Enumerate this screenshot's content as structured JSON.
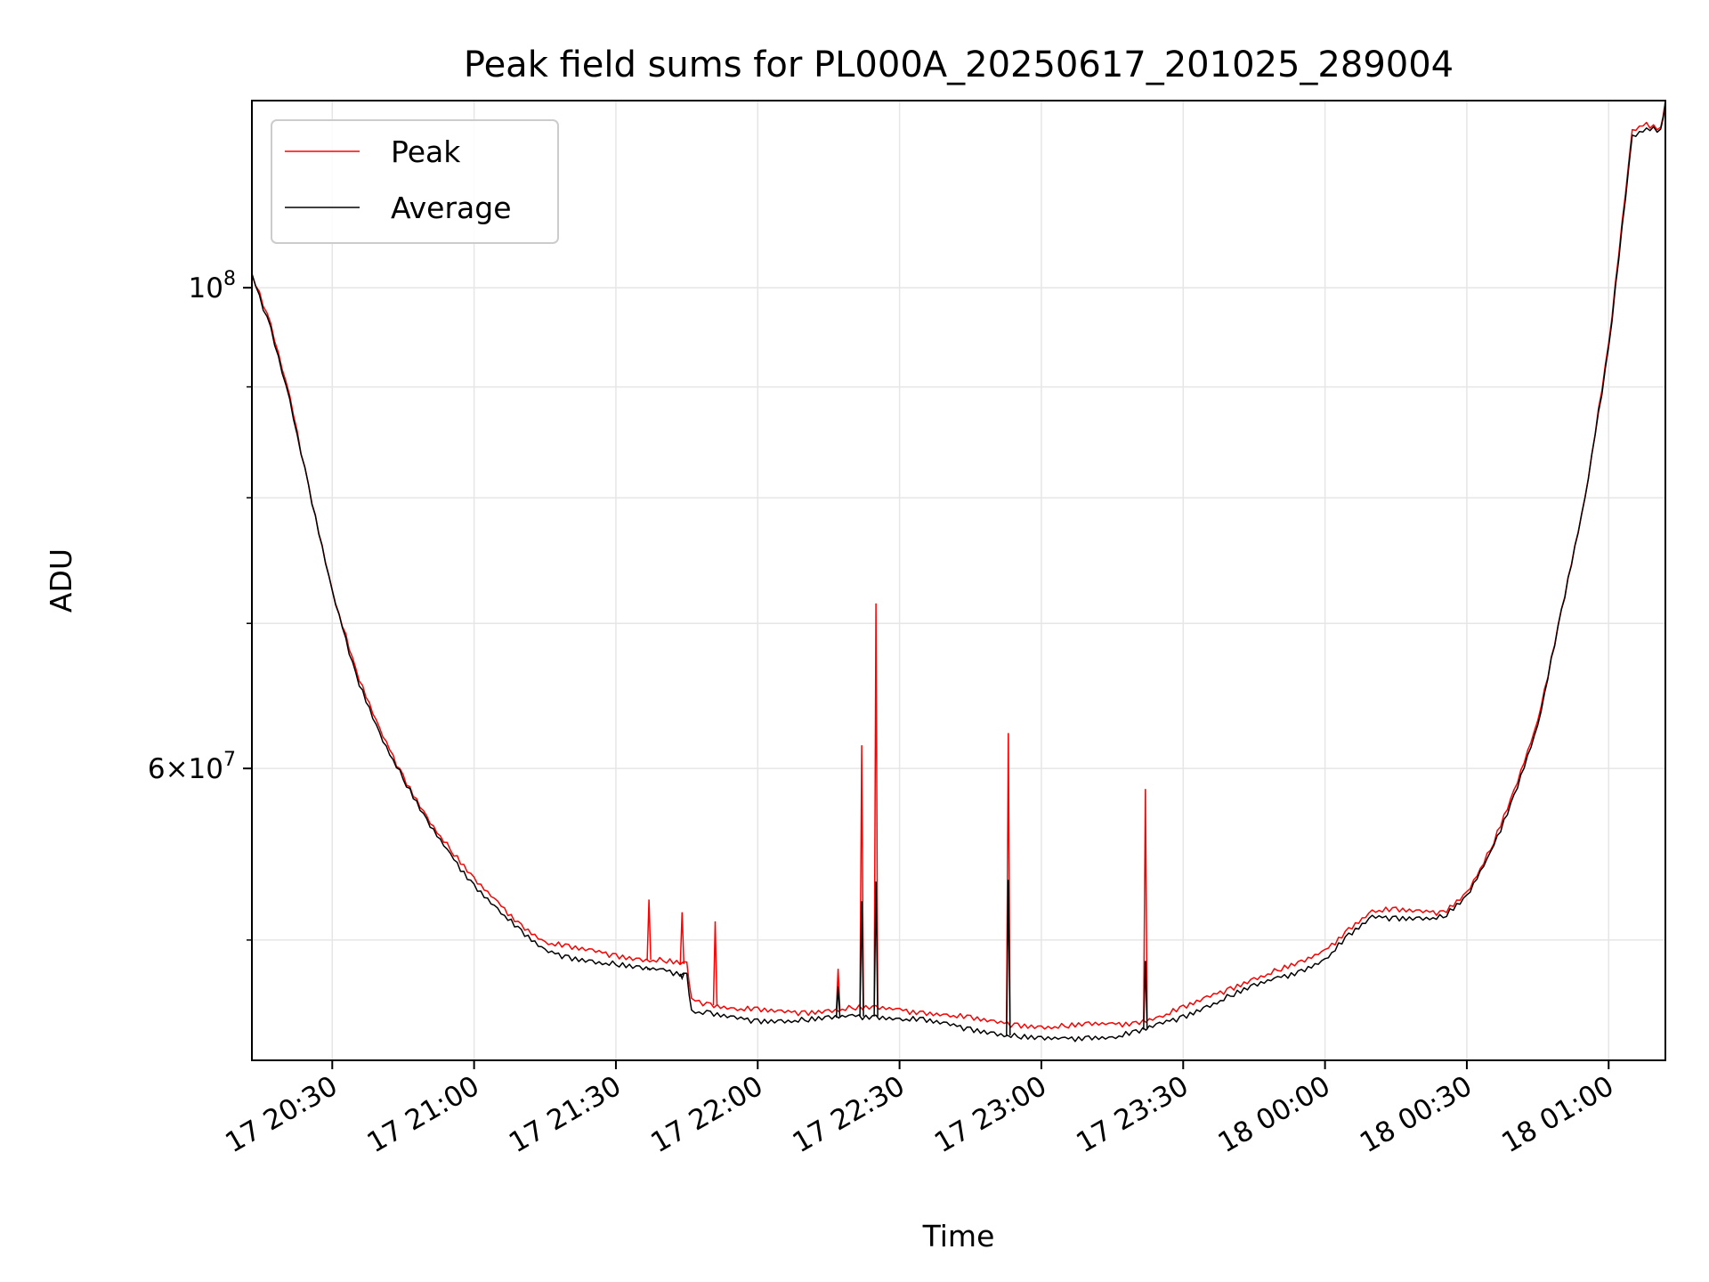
{
  "chart_data": {
    "type": "line",
    "title": "Peak field sums for PL000A_20250617_201025_289004",
    "xlabel": "Time",
    "ylabel": "ADU",
    "yscale": "log",
    "grid": true,
    "legend_position": "top-left",
    "x_start": "17 20:13",
    "x_end": "18 01:12",
    "ylim": [
      44000000,
      122000000
    ],
    "x_ticks": [
      "17 20:30",
      "17 21:00",
      "17 21:30",
      "17 22:00",
      "17 22:30",
      "17 23:00",
      "17 23:30",
      "18 00:00",
      "18 00:30",
      "18 01:00"
    ],
    "y_ticks": [
      {
        "value": 100000000,
        "base": "10",
        "exp": "8",
        "mantissa": ""
      },
      {
        "value": 60000000,
        "base": "10",
        "exp": "7",
        "mantissa": "6"
      }
    ],
    "y_minor_ticks": [
      50000000,
      70000000,
      80000000,
      90000000
    ],
    "series": [
      {
        "name": "Peak",
        "color": "#ff0000",
        "points": [
          [
            "17 20:13",
            101500000
          ],
          [
            "17 20:17",
            96000000
          ],
          [
            "17 20:21",
            89000000
          ],
          [
            "17 20:25",
            81000000
          ],
          [
            "17 20:30",
            72500000
          ],
          [
            "17 20:35",
            66500000
          ],
          [
            "17 20:40",
            62500000
          ],
          [
            "17 20:45",
            59500000
          ],
          [
            "17 20:50",
            57000000
          ],
          [
            "17 20:55",
            55000000
          ],
          [
            "17 21:00",
            53300000
          ],
          [
            "17 21:05",
            52000000
          ],
          [
            "17 21:10",
            50800000
          ],
          [
            "17 21:15",
            49900000
          ],
          [
            "17 21:20",
            49600000
          ],
          [
            "17 21:25",
            49400000
          ],
          [
            "17 21:30",
            49200000
          ],
          [
            "17 21:35",
            49000000
          ],
          [
            "17 21:40",
            48900000
          ],
          [
            "17 21:45",
            48700000
          ],
          [
            "17 21:46",
            46900000
          ],
          [
            "17 21:50",
            46700000
          ],
          [
            "17 21:55",
            46500000
          ],
          [
            "17 22:00",
            46400000
          ],
          [
            "17 22:05",
            46300000
          ],
          [
            "17 22:10",
            46300000
          ],
          [
            "17 22:15",
            46400000
          ],
          [
            "17 22:20",
            46500000
          ],
          [
            "17 22:25",
            46500000
          ],
          [
            "17 22:30",
            46400000
          ],
          [
            "17 22:35",
            46300000
          ],
          [
            "17 22:40",
            46200000
          ],
          [
            "17 22:45",
            46000000
          ],
          [
            "17 22:50",
            45800000
          ],
          [
            "17 22:55",
            45700000
          ],
          [
            "17 23:00",
            45600000
          ],
          [
            "17 23:05",
            45600000
          ],
          [
            "17 23:10",
            45700000
          ],
          [
            "17 23:15",
            45700000
          ],
          [
            "17 23:20",
            45800000
          ],
          [
            "17 23:25",
            46100000
          ],
          [
            "17 23:30",
            46500000
          ],
          [
            "17 23:35",
            47000000
          ],
          [
            "17 23:40",
            47500000
          ],
          [
            "17 23:45",
            48000000
          ],
          [
            "17 23:50",
            48400000
          ],
          [
            "17 23:55",
            48800000
          ],
          [
            "18 00:00",
            49400000
          ],
          [
            "18 00:05",
            50600000
          ],
          [
            "18 00:10",
            51600000
          ],
          [
            "18 00:15",
            51600000
          ],
          [
            "18 00:20",
            51500000
          ],
          [
            "18 00:25",
            51500000
          ],
          [
            "18 00:30",
            52600000
          ],
          [
            "18 00:35",
            55000000
          ],
          [
            "18 00:40",
            58500000
          ],
          [
            "18 00:45",
            63000000
          ],
          [
            "18 00:50",
            71000000
          ],
          [
            "18 00:55",
            80000000
          ],
          [
            "18 01:00",
            94000000
          ],
          [
            "18 01:05",
            118000000
          ],
          [
            "18 01:08",
            119000000
          ],
          [
            "18 01:11",
            118500000
          ],
          [
            "18 01:12",
            122000000
          ]
        ],
        "spikes": [
          [
            "17 21:37",
            52200000
          ],
          [
            "17 21:44",
            51500000
          ],
          [
            "17 21:51",
            51000000
          ],
          [
            "17 22:17",
            48500000
          ],
          [
            "17 22:22",
            61500000
          ],
          [
            "17 22:25",
            71500000
          ],
          [
            "17 22:53",
            62300000
          ],
          [
            "17 23:22",
            58700000
          ]
        ]
      },
      {
        "name": "Average",
        "color": "#000000",
        "points": [
          [
            "17 20:13",
            101300000
          ],
          [
            "17 20:17",
            95800000
          ],
          [
            "17 20:21",
            88800000
          ],
          [
            "17 20:25",
            80800000
          ],
          [
            "17 20:30",
            72300000
          ],
          [
            "17 20:35",
            66300000
          ],
          [
            "17 20:40",
            62300000
          ],
          [
            "17 20:45",
            59300000
          ],
          [
            "17 20:50",
            56700000
          ],
          [
            "17 20:55",
            54700000
          ],
          [
            "17 21:00",
            53000000
          ],
          [
            "17 21:05",
            51700000
          ],
          [
            "17 21:10",
            50400000
          ],
          [
            "17 21:15",
            49400000
          ],
          [
            "17 21:20",
            49100000
          ],
          [
            "17 21:25",
            48900000
          ],
          [
            "17 21:30",
            48700000
          ],
          [
            "17 21:35",
            48500000
          ],
          [
            "17 21:40",
            48400000
          ],
          [
            "17 21:45",
            48200000
          ],
          [
            "17 21:46",
            46400000
          ],
          [
            "17 21:50",
            46200000
          ],
          [
            "17 21:55",
            46000000
          ],
          [
            "17 22:00",
            45900000
          ],
          [
            "17 22:05",
            45900000
          ],
          [
            "17 22:10",
            45900000
          ],
          [
            "17 22:15",
            46000000
          ],
          [
            "17 22:20",
            46100000
          ],
          [
            "17 22:25",
            46100000
          ],
          [
            "17 22:30",
            46000000
          ],
          [
            "17 22:35",
            45900000
          ],
          [
            "17 22:40",
            45700000
          ],
          [
            "17 22:45",
            45500000
          ],
          [
            "17 22:50",
            45300000
          ],
          [
            "17 22:55",
            45100000
          ],
          [
            "17 23:00",
            45000000
          ],
          [
            "17 23:05",
            45000000
          ],
          [
            "17 23:10",
            45100000
          ],
          [
            "17 23:15",
            45100000
          ],
          [
            "17 23:20",
            45300000
          ],
          [
            "17 23:25",
            45700000
          ],
          [
            "17 23:30",
            46100000
          ],
          [
            "17 23:35",
            46600000
          ],
          [
            "17 23:40",
            47100000
          ],
          [
            "17 23:45",
            47600000
          ],
          [
            "17 23:50",
            48000000
          ],
          [
            "17 23:55",
            48400000
          ],
          [
            "18 00:00",
            49000000
          ],
          [
            "18 00:05",
            50200000
          ],
          [
            "18 00:10",
            51200000
          ],
          [
            "18 00:15",
            51200000
          ],
          [
            "18 00:20",
            51200000
          ],
          [
            "18 00:25",
            51200000
          ],
          [
            "18 00:30",
            52300000
          ],
          [
            "18 00:35",
            54800000
          ],
          [
            "18 00:40",
            58300000
          ],
          [
            "18 00:45",
            62800000
          ],
          [
            "18 00:50",
            70800000
          ],
          [
            "18 00:55",
            79800000
          ],
          [
            "18 01:00",
            93800000
          ],
          [
            "18 01:05",
            117500000
          ],
          [
            "18 01:08",
            118500000
          ],
          [
            "18 01:11",
            118000000
          ],
          [
            "18 01:12",
            121500000
          ]
        ],
        "spikes": [
          [
            "17 21:37",
            48500000
          ],
          [
            "17 21:44",
            48000000
          ],
          [
            "17 22:17",
            47600000
          ],
          [
            "17 22:22",
            52100000
          ],
          [
            "17 22:25",
            53200000
          ],
          [
            "17 22:53",
            53300000
          ],
          [
            "17 23:22",
            48900000
          ]
        ]
      }
    ]
  }
}
